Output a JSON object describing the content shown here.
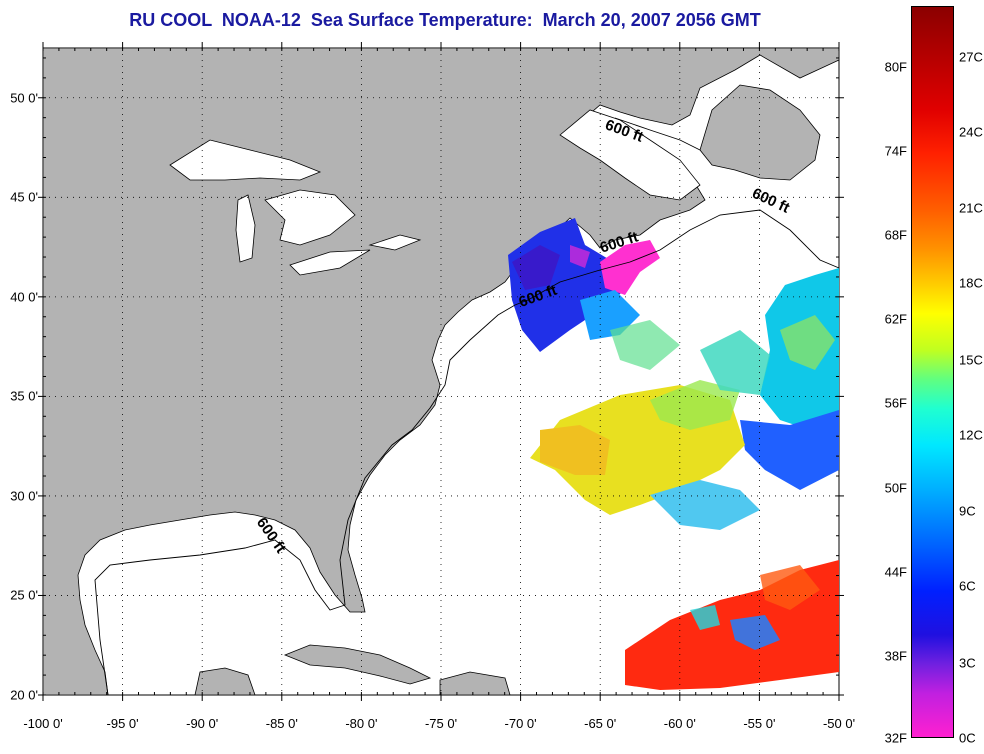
{
  "title": "RU COOL  NOAA-12  Sea Surface Temperature:  March 20, 2007 2056 GMT",
  "map": {
    "lon_range": [
      -100,
      -50
    ],
    "lat_range": [
      20,
      52.5
    ],
    "grid": true,
    "lon_ticks": [
      {
        "value": -100,
        "label": "-100 0'"
      },
      {
        "value": -95,
        "label": "-95 0'"
      },
      {
        "value": -90,
        "label": "-90 0'"
      },
      {
        "value": -85,
        "label": "-85 0'"
      },
      {
        "value": -80,
        "label": "-80 0'"
      },
      {
        "value": -75,
        "label": "-75 0'"
      },
      {
        "value": -70,
        "label": "-70 0'"
      },
      {
        "value": -65,
        "label": "-65 0'"
      },
      {
        "value": -60,
        "label": "-60 0'"
      },
      {
        "value": -55,
        "label": "-55 0'"
      },
      {
        "value": -50,
        "label": "-50 0'"
      }
    ],
    "lat_ticks": [
      {
        "value": 50,
        "label": "50 0'"
      },
      {
        "value": 45,
        "label": "45 0'"
      },
      {
        "value": 40,
        "label": "40 0'"
      },
      {
        "value": 35,
        "label": "35 0'"
      },
      {
        "value": 30,
        "label": "30 0'"
      },
      {
        "value": 25,
        "label": "25 0'"
      },
      {
        "value": 20,
        "label": "20 0'"
      }
    ],
    "contour_labels": [
      {
        "text": "600 ft",
        "lon": -63.5,
        "lat": 48.3,
        "angle": 20
      },
      {
        "text": "600 ft",
        "lon": -54.3,
        "lat": 44.8,
        "angle": 25
      },
      {
        "text": "600 ft",
        "lon": -63.8,
        "lat": 42.7,
        "angle": -18
      },
      {
        "text": "600 ft",
        "lon": -68.9,
        "lat": 40.0,
        "angle": -20
      },
      {
        "text": "600 ft",
        "lon": -85.7,
        "lat": 28.0,
        "angle": 55
      }
    ],
    "colors": {
      "land": "#b3b3b3",
      "water_nodata": "#ffffff"
    }
  },
  "colorbar": {
    "fahrenheit": [
      {
        "label": "80F",
        "frac": 0.083
      },
      {
        "label": "74F",
        "frac": 0.198
      },
      {
        "label": "68F",
        "frac": 0.313
      },
      {
        "label": "62F",
        "frac": 0.428
      },
      {
        "label": "56F",
        "frac": 0.543
      },
      {
        "label": "50F",
        "frac": 0.658
      },
      {
        "label": "44F",
        "frac": 0.773
      },
      {
        "label": "38F",
        "frac": 0.888
      },
      {
        "label": "32F",
        "frac": 1.0
      }
    ],
    "celsius": [
      {
        "label": "27C",
        "frac": 0.069
      },
      {
        "label": "24C",
        "frac": 0.172
      },
      {
        "label": "21C",
        "frac": 0.276
      },
      {
        "label": "18C",
        "frac": 0.379
      },
      {
        "label": "15C",
        "frac": 0.483
      },
      {
        "label": "12C",
        "frac": 0.586
      },
      {
        "label": "9C",
        "frac": 0.69
      },
      {
        "label": "6C",
        "frac": 0.793
      },
      {
        "label": "3C",
        "frac": 0.897
      },
      {
        "label": "0C",
        "frac": 1.0
      }
    ]
  }
}
